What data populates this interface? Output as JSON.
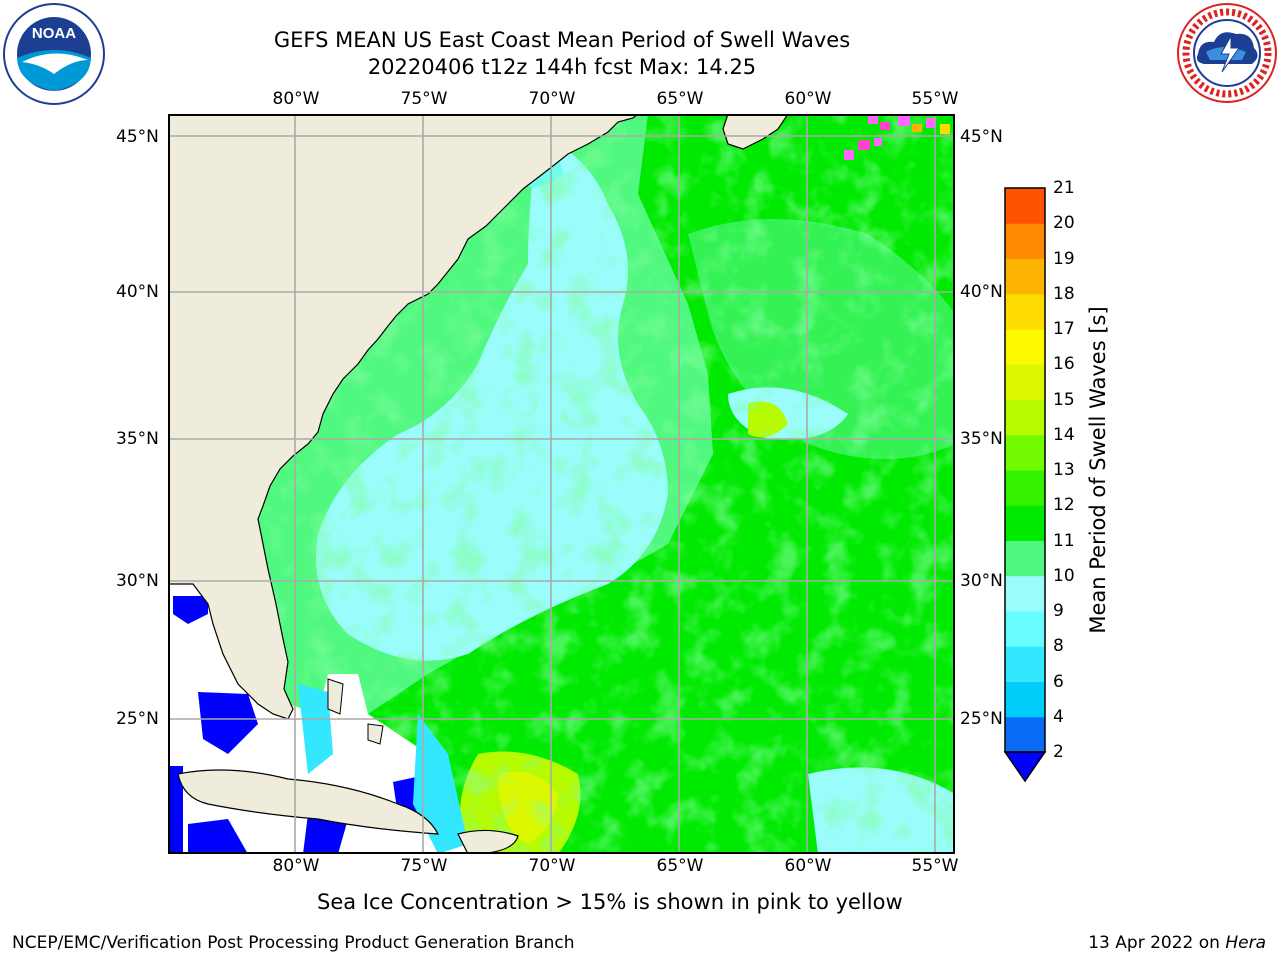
{
  "header": {
    "title": "GEFS MEAN US East Coast Mean Period of Swell Waves",
    "subtitle": "20220406 t12z 144h fcst   Max: 14.25"
  },
  "logos": {
    "left": "NOAA",
    "right": "NATIONAL WEATHER SERVICE"
  },
  "map": {
    "longitude_labels": [
      "80°W",
      "75°W",
      "70°W",
      "65°W",
      "60°W",
      "55°W"
    ],
    "latitude_labels": [
      "45°N",
      "40°N",
      "35°N",
      "30°N",
      "25°N"
    ],
    "gridline_color": "#aaaaaa",
    "land_color": "#efecdc",
    "missing_color": "#ffffff"
  },
  "colorbar": {
    "title": "Mean Period of Swell Waves [s]",
    "tick_labels": [
      "2",
      "4",
      "6",
      "8",
      "9",
      "10",
      "11",
      "12",
      "13",
      "14",
      "15",
      "16",
      "17",
      "18",
      "19",
      "20",
      "21"
    ],
    "colors": [
      "#0a6cf5",
      "#00cdfa",
      "#33e8fe",
      "#69fcfe",
      "#9afdfc",
      "#50f87f",
      "#00e900",
      "#34f200",
      "#72fa00",
      "#b6fb00",
      "#dcf800",
      "#fdf900",
      "#fdda00",
      "#fdb400",
      "#fd8a00",
      "#fd5200",
      "#fd2400",
      "#fd0000"
    ],
    "under_color": "#0000ff"
  },
  "notes": {
    "ice": "Sea Ice Concentration > 15% is shown in pink to yellow"
  },
  "footer": {
    "left": "NCEP/EMC/Verification Post Processing Product Generation Branch",
    "date": "13 Apr 2022 on",
    "machine": "Hera"
  }
}
